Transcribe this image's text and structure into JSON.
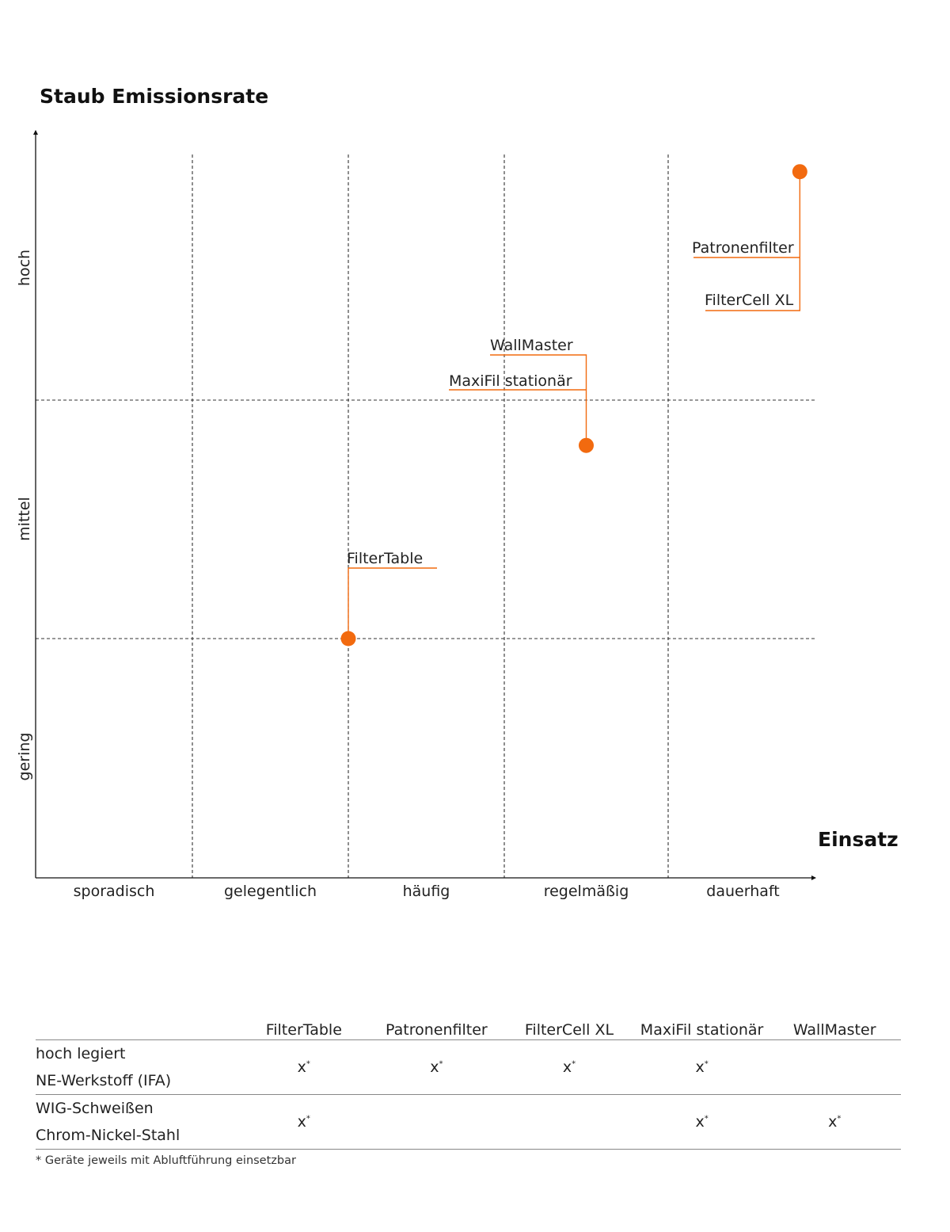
{
  "chart_data": {
    "type": "scatter",
    "ylabel": "Staub Emissionsrate",
    "xlabel": "Einsatz",
    "x_categories": [
      "sporadisch",
      "gelegentlich",
      "häufig",
      "regelmäßig",
      "dauerhaft"
    ],
    "y_categories": [
      "gering",
      "mittel",
      "hoch"
    ],
    "grid": true,
    "accent_color": "#f26a0f",
    "points": [
      {
        "x": "häufig / gelegentlich",
        "x_value": 2.0,
        "y_value": 1.0,
        "labels": [
          "FilterTable"
        ]
      },
      {
        "x": "regelmäßig",
        "x_value": 3.5,
        "y_value": 1.81,
        "labels": [
          "WallMaster",
          "MaxiFil stationär"
        ]
      },
      {
        "x": "dauerhaft",
        "x_value": 4.88,
        "y_value": 2.93,
        "labels": [
          "Patronenfilter",
          "FilterCell XL"
        ]
      }
    ]
  },
  "table": {
    "columns": [
      "FilterTable",
      "Patronenfilter",
      "FilterCell XL",
      "MaxiFil stationär",
      "WallMaster"
    ],
    "rows": [
      {
        "line1": "hoch legiert",
        "line2": "NE-Werkstoff (IFA)",
        "marks": [
          "x",
          "x",
          "x",
          "x",
          ""
        ]
      },
      {
        "line1": "WIG-Schweißen",
        "line2": "Chrom-Nickel-Stahl",
        "marks": [
          "x",
          "",
          "",
          "x",
          "x"
        ]
      }
    ],
    "mark_note": "*",
    "footnote": "* Geräte jeweils mit Abluftführung einsetzbar"
  }
}
